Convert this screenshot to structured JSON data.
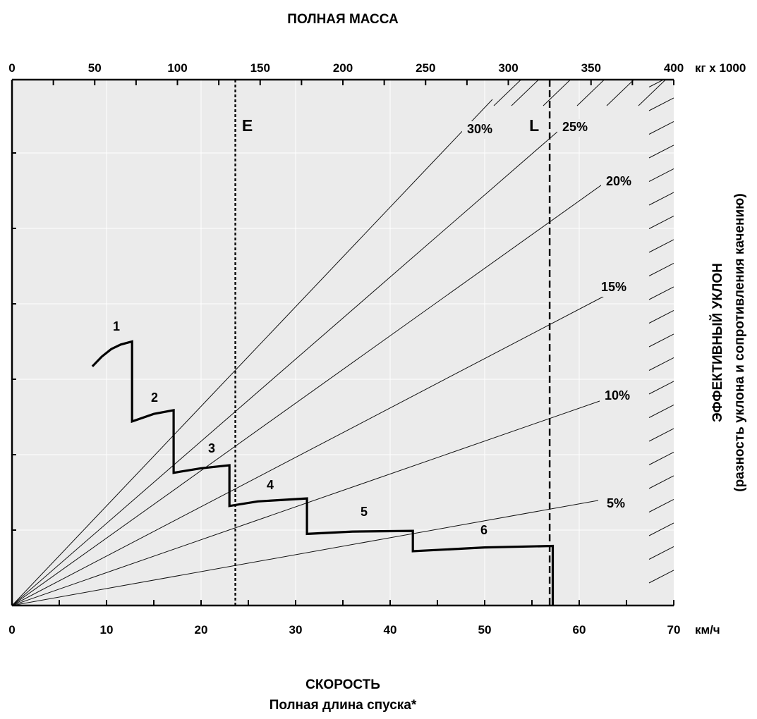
{
  "chart_data": {
    "type": "line",
    "top_axis_title": "ПОЛНАЯ МАССА",
    "top_axis_unit": "кг х 1000",
    "top_axis_ticks": [
      "0",
      "50",
      "100",
      "150",
      "200",
      "250",
      "300",
      "350",
      "400"
    ],
    "top_axis_range": [
      0,
      400
    ],
    "bottom_axis_title": "СКОРОСТЬ",
    "bottom_axis_subtitle": "Полная длина спуска*",
    "bottom_axis_unit": "км/ч",
    "bottom_axis_ticks": [
      "0",
      "10",
      "20",
      "30",
      "40",
      "50",
      "60",
      "70"
    ],
    "bottom_axis_range": [
      0,
      70
    ],
    "right_axis_title": "ЭФФЕКТИВНЫЙ УКЛОН",
    "right_axis_subtitle": "(разность уклона и сопротивления качению)",
    "grid": true,
    "grade_lines": [
      {
        "label": "30%",
        "grade": 30
      },
      {
        "label": "25%",
        "grade": 25
      },
      {
        "label": "20%",
        "grade": 20
      },
      {
        "label": "15%",
        "grade": 15
      },
      {
        "label": "10%",
        "grade": 10
      },
      {
        "label": "5%",
        "grade": 5
      }
    ],
    "markers": [
      {
        "label": "E",
        "mass": 135
      },
      {
        "label": "L",
        "mass": 325
      }
    ],
    "gear_labels": [
      "1",
      "2",
      "3",
      "4",
      "5",
      "6"
    ],
    "curve": [
      {
        "speed": 8.5,
        "level": 3.17
      },
      {
        "speed": 9.5,
        "level": 3.3
      },
      {
        "speed": 10.5,
        "level": 3.4
      },
      {
        "speed": 11.5,
        "level": 3.46
      },
      {
        "speed": 12.7,
        "level": 3.5
      },
      {
        "speed": 12.7,
        "level": 2.44
      },
      {
        "speed": 15.0,
        "level": 2.54
      },
      {
        "speed": 17.1,
        "level": 2.59
      },
      {
        "speed": 17.1,
        "level": 1.76
      },
      {
        "speed": 20.0,
        "level": 1.82
      },
      {
        "speed": 23.0,
        "level": 1.86
      },
      {
        "speed": 23.0,
        "level": 1.32
      },
      {
        "speed": 26.0,
        "level": 1.38
      },
      {
        "speed": 31.2,
        "level": 1.42
      },
      {
        "speed": 31.2,
        "level": 0.95
      },
      {
        "speed": 36.0,
        "level": 0.98
      },
      {
        "speed": 42.4,
        "level": 0.99
      },
      {
        "speed": 42.4,
        "level": 0.72
      },
      {
        "speed": 50.0,
        "level": 0.77
      },
      {
        "speed": 57.2,
        "level": 0.79
      },
      {
        "speed": 57.2,
        "level": 0.0
      }
    ]
  }
}
